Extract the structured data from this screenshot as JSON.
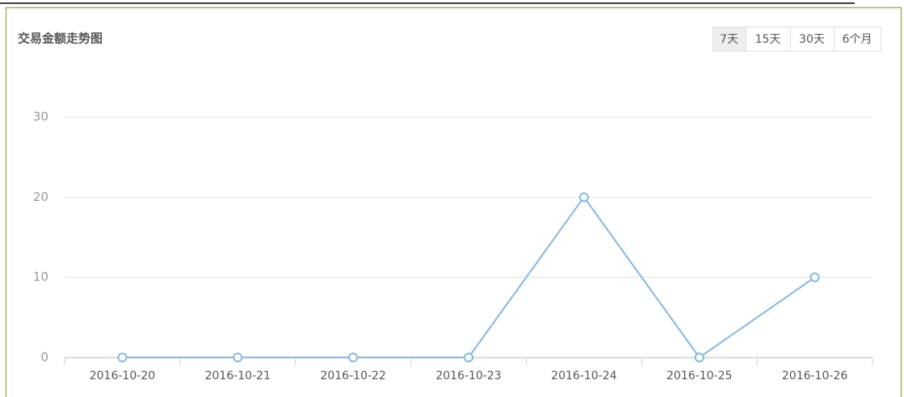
{
  "chart_data": {
    "type": "line",
    "title": "交易金额走势图",
    "categories": [
      "2016-10-20",
      "2016-10-21",
      "2016-10-22",
      "2016-10-23",
      "2016-10-24",
      "2016-10-25",
      "2016-10-26"
    ],
    "values": [
      0,
      0,
      0,
      0,
      20,
      0,
      10
    ],
    "color": "#84b7e3",
    "ylim": [
      0,
      30
    ],
    "yticks": [
      0,
      10,
      20,
      30
    ],
    "grid": true
  },
  "buttons": {
    "labels": [
      "7天",
      "15天",
      "30天",
      "6个月"
    ],
    "selected": 0
  }
}
